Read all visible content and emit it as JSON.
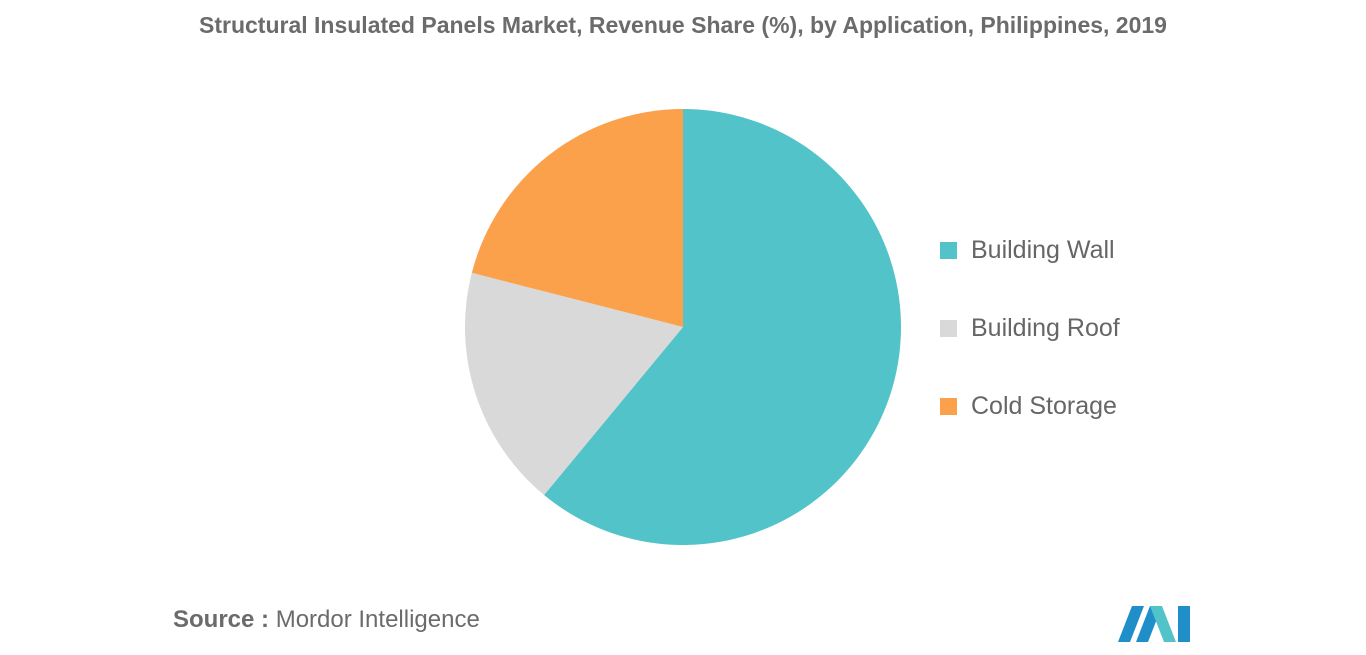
{
  "chart_data": {
    "type": "pie",
    "title": "Structural Insulated Panels Market, Revenue Share (%), by Application, Philippines, 2019",
    "categories": [
      "Building Wall",
      "Building Roof",
      "Cold Storage"
    ],
    "values": [
      61,
      18,
      21
    ],
    "colors": [
      "#52c4c9",
      "#d9d9d9",
      "#fba04b"
    ],
    "legend_position": "right"
  },
  "source": {
    "prefix": "Source :",
    "text": "Mordor Intelligence"
  },
  "logo": {
    "icon": "mordor-intelligence-logo",
    "colors": [
      "#1f8ec9",
      "#52c4c9"
    ]
  }
}
